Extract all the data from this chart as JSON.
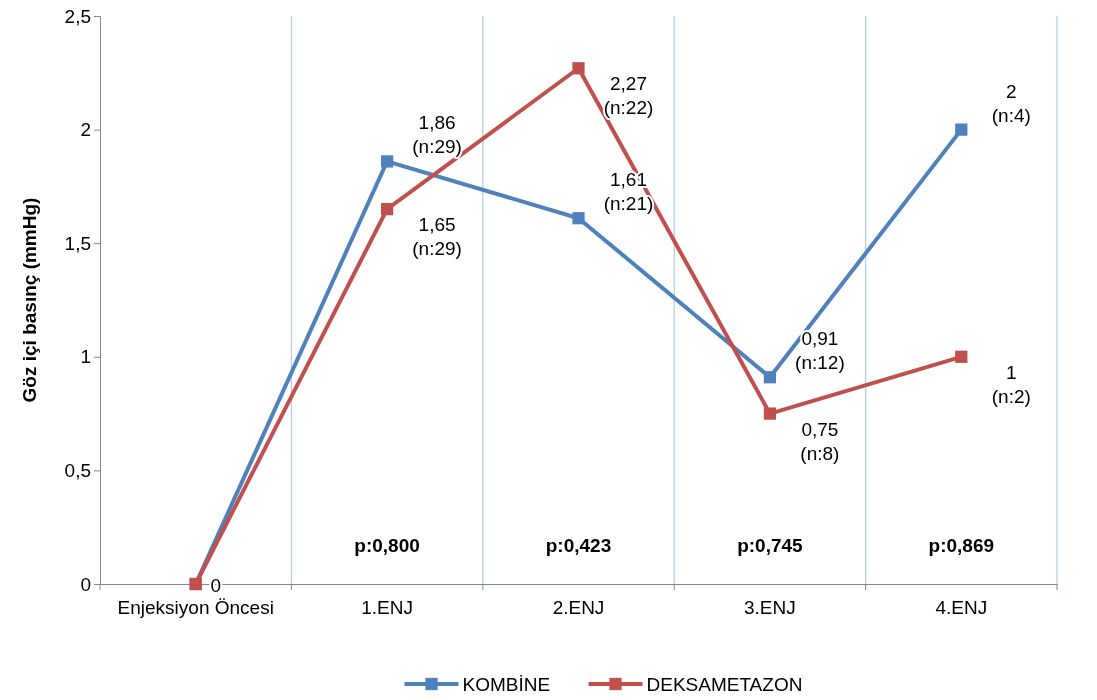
{
  "chart_data": {
    "type": "line",
    "ylabel": "Göz içi basınç (mmHg)",
    "categories": [
      "Enjeksiyon Öncesi",
      "1.ENJ",
      "2.ENJ",
      "3.ENJ",
      "4.ENJ"
    ],
    "series": [
      {
        "name": "KOMBİNE",
        "color": "#4f81bd",
        "values": [
          0,
          1.86,
          1.61,
          0.91,
          2
        ],
        "value_labels": [
          "0",
          "1,86\n(n:29)",
          "1,61\n(n:21)",
          "0,91\n(n:12)",
          "2\n(n:4)"
        ]
      },
      {
        "name": "DEKSAMETAZON",
        "color": "#c0504d",
        "values": [
          0,
          1.65,
          2.27,
          0.75,
          1
        ],
        "value_labels": [
          null,
          "1,65\n(n:29)",
          "2,27\n(n:22)",
          "0,75\n(n:8)",
          "1\n(n:2)"
        ]
      }
    ],
    "ylim": [
      0,
      2.5
    ],
    "yticks": [
      0,
      {
        "value": 0.5,
        "label": "0,5"
      },
      1,
      {
        "value": 1.5,
        "label": "1,5"
      },
      2,
      {
        "value": 2.5,
        "label": "2,5"
      }
    ],
    "annotations": [
      "p:0,800",
      "p:0,423",
      "p:0,745",
      "p:0,869"
    ],
    "grid": "x",
    "legend": "bottom",
    "marker": "square",
    "line_style": "solid"
  }
}
